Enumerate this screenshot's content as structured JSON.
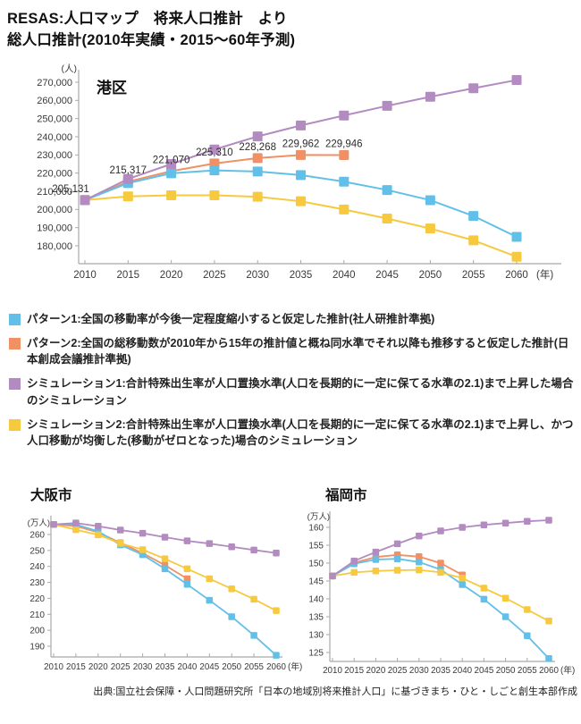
{
  "header": {
    "title_line1": "RESAS:人口マップ　将来人口推計　より",
    "title_line2": "総人口推計(2010年実績・2015〜60年予測)"
  },
  "colors": {
    "pattern1": "#62C0E8",
    "pattern2": "#EF9065",
    "sim1": "#B28BC0",
    "sim2": "#F6C93F",
    "axis": "#A9A9A9",
    "tick_text": "#3A3A3A",
    "label_text": "#2B2B2B"
  },
  "legend": [
    {
      "color": "pattern1",
      "label": "パターン1:全国の移動率が今後一定程度縮小すると仮定した推計(社人研推計準拠)"
    },
    {
      "color": "pattern2",
      "label": "パターン2:全国の総移動数が2010年から15年の推計値と概ね同水準でそれ以降も推移すると仮定した推計(日本創成会議推計準拠)"
    },
    {
      "color": "sim1",
      "label": "シミュレーション1:合計特殊出生率が人口置換水準(人口を長期的に一定に保てる水準の2.1)まで上昇した場合のシミュレーション"
    },
    {
      "color": "sim2",
      "label": "シミュレーション2:合計特殊出生率が人口置換水準(人口を長期的に一定に保てる水準の2.1)まで上昇し、かつ人口移動が均衡した(移動がゼロとなった)場合のシミュレーション"
    }
  ],
  "source": "出典:国立社会保障・人口問題研究所「日本の地域別将来推計人口」に基づきまち・ひと・しごと創生本部作成",
  "chart_data": [
    {
      "type": "line",
      "title": "港区",
      "y_unit": "(人)",
      "x_unit": "(年)",
      "categories": [
        "2010",
        "2015",
        "2020",
        "2025",
        "2030",
        "2035",
        "2040",
        "2045",
        "2050",
        "2055",
        "2060"
      ],
      "ylim": [
        180000,
        270000
      ],
      "yticks": [
        270000,
        260000,
        250000,
        240000,
        230000,
        220000,
        210000,
        200000,
        190000,
        180000
      ],
      "comma_ticks": true,
      "grid": false,
      "legend_position": "below",
      "series": [
        {
          "name": "パターン2",
          "color": "pattern2",
          "values": [
            205131,
            215317,
            221070,
            225310,
            228268,
            229962,
            229946
          ],
          "point_labels": [
            "205,131",
            "215,317",
            "221,070",
            "225,310",
            "228,268",
            "229,962",
            "229,946"
          ]
        },
        {
          "name": "パターン1",
          "color": "pattern1",
          "values": [
            205131,
            214500,
            219900,
            221500,
            220900,
            218900,
            215300,
            210700,
            205100,
            196400,
            184900
          ]
        },
        {
          "name": "シミュレーション2",
          "color": "sim2",
          "values": [
            205131,
            207200,
            207800,
            207800,
            207000,
            204500,
            200000,
            195000,
            189500,
            183000,
            174000
          ]
        },
        {
          "name": "シミュレーション1",
          "color": "sim1",
          "values": [
            205131,
            216800,
            225000,
            233000,
            240200,
            246200,
            251700,
            257000,
            262000,
            266700,
            271200
          ]
        }
      ]
    },
    {
      "type": "line",
      "title": "大阪市",
      "y_unit": "(万人)",
      "x_unit": "(年)",
      "categories": [
        "2010",
        "2015",
        "2020",
        "2025",
        "2030",
        "2035",
        "2040",
        "2045",
        "2050",
        "2055",
        "2060"
      ],
      "ylim": [
        190,
        260
      ],
      "yticks": [
        260,
        250,
        240,
        230,
        220,
        210,
        200,
        190
      ],
      "comma_ticks": false,
      "grid": false,
      "series": [
        {
          "name": "パターン2",
          "color": "pattern2",
          "values": [
            266.3,
            265.3,
            261.3,
            254.8,
            248.3,
            240.8,
            232.3
          ]
        },
        {
          "name": "パターン1",
          "color": "pattern1",
          "values": [
            266.3,
            266.3,
            262,
            253.5,
            247.3,
            238.5,
            228.8,
            218.8,
            208.5,
            196.8,
            184.3
          ]
        },
        {
          "name": "シミュレーション2",
          "color": "sim2",
          "values": [
            266.3,
            263,
            259.8,
            254.5,
            250.5,
            244.8,
            238.5,
            232.3,
            226,
            219.5,
            212.3
          ]
        },
        {
          "name": "シミュレーション1",
          "color": "sim1",
          "values": [
            266.3,
            267.2,
            265.2,
            262.8,
            260.8,
            258.3,
            256,
            254.3,
            252.3,
            250.3,
            248.4
          ]
        }
      ]
    },
    {
      "type": "line",
      "title": "福岡市",
      "y_unit": "(万人)",
      "x_unit": "(年)",
      "categories": [
        "2010",
        "2015",
        "2020",
        "2025",
        "2030",
        "2035",
        "2040",
        "2045",
        "2050",
        "2055",
        "2060"
      ],
      "ylim": [
        125,
        160
      ],
      "yticks": [
        160,
        155,
        150,
        145,
        140,
        135,
        130,
        125
      ],
      "comma_ticks": false,
      "grid": false,
      "series": [
        {
          "name": "パターン2",
          "color": "pattern2",
          "values": [
            146.4,
            150.1,
            151.7,
            152.3,
            151.8,
            150,
            146.7
          ]
        },
        {
          "name": "パターン1",
          "color": "pattern1",
          "values": [
            146.4,
            149.8,
            151,
            151.2,
            150.3,
            148.2,
            144,
            139.9,
            135,
            129.7,
            123.3
          ]
        },
        {
          "name": "シミュレーション2",
          "color": "sim2",
          "values": [
            146.4,
            147.4,
            147.8,
            148,
            148.1,
            147.4,
            145.8,
            143,
            140.2,
            137,
            133.8
          ]
        },
        {
          "name": "シミュレーション1",
          "color": "sim1",
          "values": [
            146.4,
            150.6,
            153.1,
            155.4,
            157.6,
            159,
            160,
            160.7,
            161.2,
            161.7,
            162
          ]
        }
      ]
    }
  ]
}
